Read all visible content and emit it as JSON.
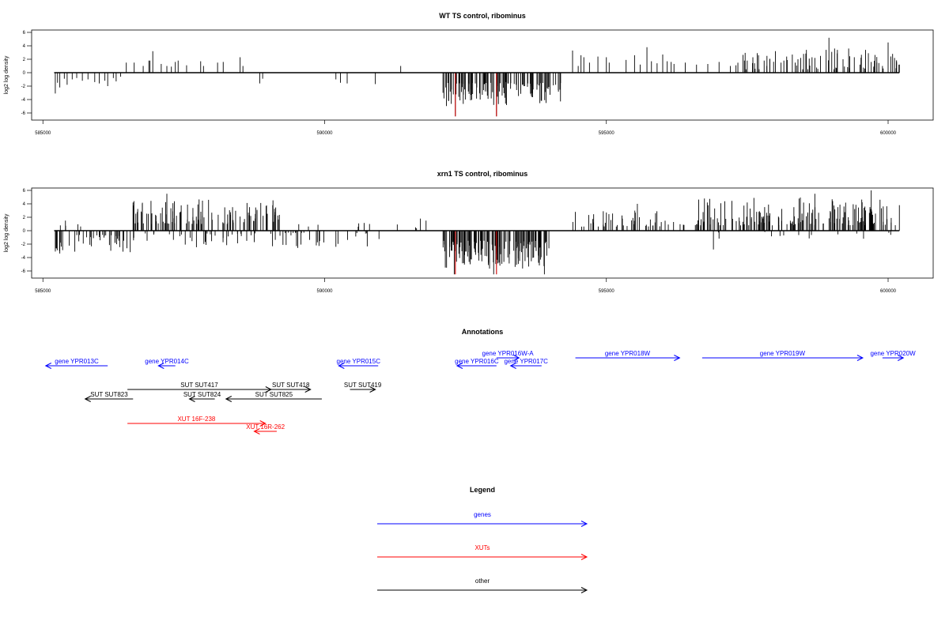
{
  "colors": {
    "gene": "#0000ff",
    "xut": "#ff0000",
    "other": "#000000",
    "highlight": "#cc0000",
    "frame": "#000000"
  },
  "axis": {
    "xmin": 585000,
    "xmax": 600000,
    "xticks": [
      "585000",
      "590000",
      "595000",
      "600000"
    ]
  },
  "chart_data": [
    {
      "type": "bar",
      "title": "WT TS control, ribominus",
      "ylabel": "log2 log density",
      "x_range": [
        584800,
        600800
      ],
      "ylim": [
        -6.5,
        6.5
      ],
      "yticks": [
        "-6",
        "-4",
        "-2",
        "0",
        "2",
        "4",
        "6"
      ],
      "segment": [
        585200,
        600200
      ],
      "bars": [
        [
          585220,
          -3.1
        ],
        [
          585260,
          -1.5
        ],
        [
          585300,
          -2.2
        ],
        [
          585380,
          -0.9
        ],
        [
          585430,
          -1.8
        ],
        [
          585520,
          -1.0
        ],
        [
          585600,
          -0.8
        ],
        [
          585700,
          -1.2
        ],
        [
          585800,
          -1.0
        ],
        [
          585920,
          -1.4
        ],
        [
          586000,
          -1.6
        ],
        [
          586100,
          -1.2
        ],
        [
          586150,
          -2.0
        ],
        [
          586250,
          -0.8
        ],
        [
          586300,
          -1.3
        ],
        [
          586380,
          -0.6
        ],
        [
          586480,
          1.5
        ],
        [
          586620,
          1.5
        ],
        [
          586780,
          1.0
        ],
        [
          586880,
          1.8
        ],
        [
          586900,
          1.8
        ],
        [
          586950,
          3.2
        ],
        [
          587100,
          1.3
        ],
        [
          587200,
          1.0
        ],
        [
          587280,
          0.9
        ],
        [
          587350,
          1.6
        ],
        [
          587400,
          1.8
        ],
        [
          587550,
          1.1
        ],
        [
          587800,
          1.7
        ],
        [
          587850,
          1.0
        ],
        [
          588100,
          1.5
        ],
        [
          588200,
          1.6
        ],
        [
          588500,
          2.3
        ],
        [
          588550,
          1.0
        ],
        [
          588850,
          -1.6
        ],
        [
          588900,
          -0.9
        ],
        [
          590200,
          -1.0
        ],
        [
          590280,
          -1.5
        ],
        [
          590400,
          -1.6
        ],
        [
          590900,
          -1.7
        ],
        [
          591350,
          1.0
        ],
        [
          592100,
          -3.0
        ],
        [
          592150,
          -2.2
        ],
        [
          592200,
          -4.2
        ],
        [
          592250,
          -2.5
        ],
        [
          592320,
          -6.5
        ],
        [
          592380,
          -3.6
        ],
        [
          592430,
          -1.6
        ],
        [
          592500,
          -4.0
        ],
        [
          592550,
          -2.8
        ],
        [
          592600,
          -3.3
        ],
        [
          592700,
          -2.2
        ],
        [
          592760,
          -4.0
        ],
        [
          592820,
          -2.6
        ],
        [
          592900,
          -3.9
        ],
        [
          592980,
          -2.9
        ],
        [
          593000,
          -4.8
        ],
        [
          593050,
          -6.5
        ],
        [
          593100,
          -2.8
        ],
        [
          593150,
          -3.4
        ],
        [
          593220,
          -1.4
        ],
        [
          593300,
          -2.4
        ],
        [
          593400,
          -1.8
        ],
        [
          593480,
          -2.6
        ],
        [
          593550,
          -2.0
        ],
        [
          593600,
          -1.2
        ],
        [
          593700,
          -2.5
        ],
        [
          593800,
          -1.9
        ],
        [
          593850,
          -4.2
        ],
        [
          593950,
          -2.3
        ],
        [
          594000,
          -3.3
        ],
        [
          594100,
          -1.8
        ],
        [
          594400,
          3.3
        ],
        [
          594500,
          1.0
        ],
        [
          594550,
          2.6
        ],
        [
          594600,
          2.3
        ],
        [
          594700,
          1.5
        ],
        [
          594850,
          2.4
        ],
        [
          595000,
          2.3
        ],
        [
          595050,
          1.5
        ],
        [
          595350,
          1.9
        ],
        [
          595500,
          2.6
        ],
        [
          595600,
          1.2
        ],
        [
          595720,
          3.8
        ],
        [
          595800,
          1.7
        ],
        [
          595900,
          1.4
        ],
        [
          596000,
          2.7
        ],
        [
          596080,
          1.7
        ],
        [
          596150,
          1.6
        ],
        [
          596200,
          1.3
        ],
        [
          596400,
          1.5
        ],
        [
          596600,
          1.2
        ],
        [
          596800,
          1.3
        ],
        [
          597000,
          1.6
        ],
        [
          597200,
          1.0
        ],
        [
          597300,
          1.1
        ],
        [
          597450,
          1.8
        ],
        [
          597500,
          1.8
        ],
        [
          597600,
          2.3
        ],
        [
          597700,
          2.6
        ],
        [
          597800,
          1.8
        ],
        [
          597850,
          2.5
        ],
        [
          597900,
          2.0
        ],
        [
          598000,
          3.2
        ],
        [
          598100,
          1.5
        ],
        [
          598150,
          1.8
        ],
        [
          598200,
          2.4
        ],
        [
          598300,
          2.7
        ],
        [
          598350,
          1.5
        ],
        [
          598400,
          2.0
        ],
        [
          598450,
          2.2
        ],
        [
          598500,
          2.8
        ],
        [
          598550,
          3.4
        ],
        [
          598600,
          2.1
        ],
        [
          598650,
          2.3
        ],
        [
          598700,
          2.2
        ],
        [
          598800,
          2.5
        ],
        [
          598900,
          3.4
        ],
        [
          598950,
          5.2
        ],
        [
          599000,
          3.1
        ],
        [
          599050,
          3.6
        ],
        [
          599100,
          3.4
        ],
        [
          599200,
          2.0
        ],
        [
          599300,
          3.6
        ],
        [
          599400,
          2.3
        ],
        [
          599500,
          1.2
        ],
        [
          599600,
          3.4
        ],
        [
          599650,
          2.9
        ],
        [
          599700,
          1.6
        ],
        [
          599800,
          1.5
        ],
        [
          599900,
          1.0
        ],
        [
          600000,
          4.5
        ],
        [
          600080,
          2.8
        ],
        [
          600150,
          1.5
        ],
        [
          600200,
          1.2
        ]
      ],
      "highlighted_bars": [
        [
          592320,
          -6.5
        ],
        [
          593050,
          -6.5
        ]
      ],
      "dense_regions": [
        {
          "range": [
            592100,
            594200
          ],
          "sign": -1,
          "min": 1.5,
          "max": 5.0,
          "count": 90
        },
        {
          "range": [
            597300,
            600200
          ],
          "sign": 1,
          "min": 0.5,
          "max": 3.0,
          "count": 45
        }
      ]
    },
    {
      "type": "bar",
      "title": "xrn1 TS control, ribominus",
      "ylabel": "log2 log density",
      "x_range": [
        584800,
        600800
      ],
      "ylim": [
        -6.5,
        6.5
      ],
      "yticks": [
        "-6",
        "-4",
        "-2",
        "0",
        "2",
        "4",
        "6"
      ],
      "segment": [
        585200,
        600200
      ],
      "bars": [
        [
          585300,
          -3.4
        ],
        [
          585350,
          -2.9
        ],
        [
          585400,
          1.5
        ],
        [
          586550,
          -3.2
        ],
        [
          586600,
          4.2
        ],
        [
          587200,
          5.5
        ],
        [
          588800,
          3.1
        ],
        [
          589500,
          -2.3
        ],
        [
          590200,
          -2.4
        ],
        [
          591700,
          1.8
        ],
        [
          591800,
          1.5
        ],
        [
          592300,
          -6.5
        ],
        [
          593000,
          -6.5
        ],
        [
          593900,
          -6.5
        ],
        [
          594450,
          2.8
        ],
        [
          595000,
          2.7
        ],
        [
          595550,
          4.0
        ],
        [
          596900,
          -2.8
        ],
        [
          597500,
          4.2
        ],
        [
          598700,
          5.5
        ],
        [
          599700,
          6.0
        ],
        [
          600200,
          3.8
        ]
      ],
      "highlighted_bars": [
        [
          592320,
          -6.5
        ],
        [
          593050,
          -6.5
        ]
      ],
      "dense_regions": [
        {
          "range": [
            585200,
            586500
          ],
          "sign": -1,
          "min": 0.6,
          "max": 3.2,
          "count": 40
        },
        {
          "range": [
            585300,
            585700
          ],
          "sign": 1,
          "min": 0.3,
          "max": 1.2,
          "count": 4
        },
        {
          "range": [
            586600,
            589200
          ],
          "sign": 1,
          "min": 1.0,
          "max": 4.8,
          "count": 110
        },
        {
          "range": [
            586600,
            589300
          ],
          "sign": -1,
          "min": 0.4,
          "max": 2.5,
          "count": 40
        },
        {
          "range": [
            589300,
            591200
          ],
          "sign": -1,
          "min": 0.3,
          "max": 2.6,
          "count": 25
        },
        {
          "range": [
            589400,
            591700
          ],
          "sign": 1,
          "min": 0.3,
          "max": 1.6,
          "count": 10
        },
        {
          "range": [
            592100,
            594000
          ],
          "sign": -1,
          "min": 1.5,
          "max": 5.8,
          "count": 150
        },
        {
          "range": [
            594400,
            596700
          ],
          "sign": 1,
          "min": 0.6,
          "max": 3.0,
          "count": 50
        },
        {
          "range": [
            596600,
            600200
          ],
          "sign": 1,
          "min": 0.8,
          "max": 5.0,
          "count": 170
        },
        {
          "range": [
            596700,
            600200
          ],
          "sign": -1,
          "min": 0.2,
          "max": 1.2,
          "count": 14
        }
      ]
    }
  ],
  "annotations": {
    "title": "Annotations",
    "items": [
      {
        "label": "gene YPR013C",
        "type": "gene",
        "start": 585050,
        "end": 586150,
        "dir": -1,
        "row": 0
      },
      {
        "label": "gene YPR014C",
        "type": "gene",
        "start": 587050,
        "end": 587350,
        "dir": -1,
        "row": 0
      },
      {
        "label": "gene YPR015C",
        "type": "gene",
        "start": 590250,
        "end": 590950,
        "dir": -1,
        "row": 0
      },
      {
        "label": "gene YPR016C",
        "type": "gene",
        "start": 592350,
        "end": 593050,
        "dir": -1,
        "row": 0
      },
      {
        "label": "gene YPR016W-A",
        "type": "gene",
        "start": 593050,
        "end": 593450,
        "dir": 1,
        "row": 1
      },
      {
        "label": "gene YPR017C",
        "type": "gene",
        "start": 593300,
        "end": 593850,
        "dir": -1,
        "row": 0
      },
      {
        "label": "gene YPR018W",
        "type": "gene",
        "start": 594450,
        "end": 596300,
        "dir": 1,
        "row": 1
      },
      {
        "label": "gene YPR019W",
        "type": "gene",
        "start": 596700,
        "end": 599550,
        "dir": 1,
        "row": 1
      },
      {
        "label": "gene YPR020W",
        "type": "gene",
        "start": 599900,
        "end": 600270,
        "dir": 1,
        "row": 1
      },
      {
        "label": "SUT SUT417",
        "type": "other",
        "start": 586500,
        "end": 589050,
        "dir": 1,
        "row": 3
      },
      {
        "label": "SUT SUT418",
        "type": "other",
        "start": 589050,
        "end": 589750,
        "dir": 1,
        "row": 3
      },
      {
        "label": "SUT SUT419",
        "type": "other",
        "start": 590450,
        "end": 590900,
        "dir": 1,
        "row": 3
      },
      {
        "label": "SUT SUT823",
        "type": "other",
        "start": 585750,
        "end": 586600,
        "dir": -1,
        "row": 4
      },
      {
        "label": "SUT SUT824",
        "type": "other",
        "start": 587600,
        "end": 588050,
        "dir": -1,
        "row": 4
      },
      {
        "label": "SUT SUT825",
        "type": "other",
        "start": 588250,
        "end": 589950,
        "dir": -1,
        "row": 4
      },
      {
        "label": "XUT 16F-238",
        "type": "xut",
        "start": 586500,
        "end": 588950,
        "dir": 1,
        "row": 5
      },
      {
        "label": "XUT 16R-262",
        "type": "xut",
        "start": 588750,
        "end": 589150,
        "dir": -1,
        "row": 6
      }
    ]
  },
  "legend": {
    "title": "Legend",
    "items": [
      {
        "label": "genes",
        "type": "gene"
      },
      {
        "label": "XUTs",
        "type": "xut"
      },
      {
        "label": "other",
        "type": "other"
      }
    ]
  }
}
